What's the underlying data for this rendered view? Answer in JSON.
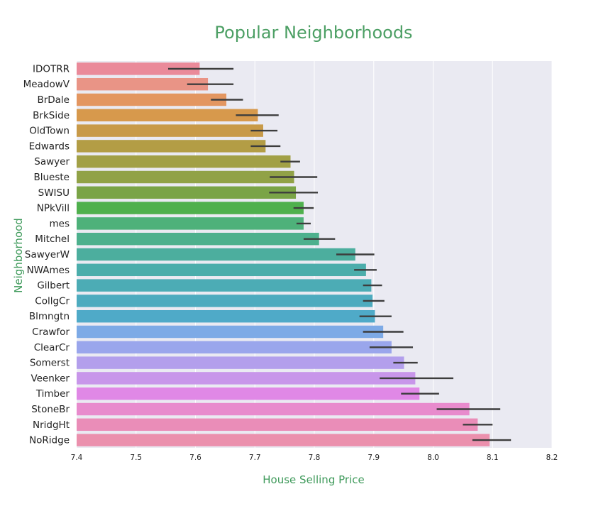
{
  "chart_data": {
    "type": "bar",
    "orientation": "horizontal",
    "title": "Popular Neighborhoods",
    "xlabel": "House Selling Price",
    "ylabel": "Neighborhood",
    "xlim": [
      7.4,
      8.2
    ],
    "xticks": [
      "7.4",
      "7.5",
      "7.6",
      "7.7",
      "7.8",
      "7.9",
      "8.0",
      "8.1",
      "8.2"
    ],
    "grid": true,
    "categories": [
      "IDOTRR",
      "MeadowV",
      "BrDale",
      "BrkSide",
      "OldTown",
      "Edwards",
      "Sawyer",
      "Blueste",
      "SWISU",
      "NPkVill",
      "mes",
      "Mitchel",
      "SawyerW",
      "NWAmes",
      "Gilbert",
      "CollgCr",
      "Blmngtn",
      "Crawfor",
      "ClearCr",
      "Somerst",
      "Veenker",
      "Timber",
      "StoneBr",
      "NridgHt",
      "NoRidge"
    ],
    "values": [
      7.607,
      7.621,
      7.652,
      7.705,
      7.714,
      7.718,
      7.76,
      7.766,
      7.769,
      7.782,
      7.782,
      7.808,
      7.869,
      7.887,
      7.896,
      7.898,
      7.902,
      7.916,
      7.93,
      7.951,
      7.97,
      7.977,
      8.061,
      8.075,
      8.095
    ],
    "ci_low": [
      7.554,
      7.586,
      7.626,
      7.668,
      7.693,
      7.693,
      7.743,
      7.725,
      7.724,
      7.765,
      7.77,
      7.782,
      7.837,
      7.867,
      7.882,
      7.882,
      7.876,
      7.882,
      7.893,
      7.933,
      7.91,
      7.946,
      8.006,
      8.05,
      8.066
    ],
    "ci_high": [
      7.664,
      7.664,
      7.68,
      7.74,
      7.738,
      7.743,
      7.776,
      7.805,
      7.806,
      7.799,
      7.794,
      7.835,
      7.901,
      7.905,
      7.914,
      7.918,
      7.93,
      7.95,
      7.966,
      7.974,
      8.034,
      8.01,
      8.113,
      8.1,
      8.131
    ],
    "colors": [
      "#ea8a9a",
      "#e99486",
      "#e39660",
      "#d7994c",
      "#c89a48",
      "#b39d45",
      "#a2a046",
      "#91a247",
      "#7aa447",
      "#4fb04d",
      "#4eb17a",
      "#4db08d",
      "#4cae9e",
      "#4badab",
      "#4cacb5",
      "#4dabbf",
      "#4faac8",
      "#7daae6",
      "#9aa6ec",
      "#b39fec",
      "#c896ea",
      "#e088e6",
      "#e88bcd",
      "#ea8db8",
      "#eb90ad"
    ]
  }
}
